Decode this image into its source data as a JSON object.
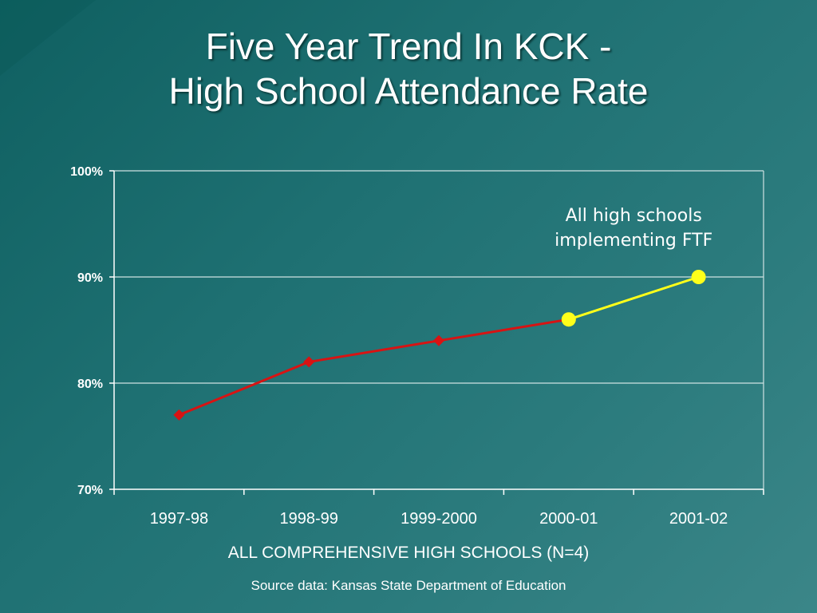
{
  "slide": {
    "title_line1": "Five Year Trend In KCK -",
    "title_line2": "High School Attendance Rate",
    "xaxis_title": "ALL COMPREHENSIVE HIGH SCHOOLS (N=4)",
    "source": "Source data: Kansas State Department of Education"
  },
  "chart_data": {
    "type": "line",
    "categories": [
      "1997-98",
      "1998-99",
      "1999-2000",
      "2000-01",
      "2001-02"
    ],
    "values": [
      77,
      82,
      84,
      86,
      90
    ],
    "ylim": [
      70,
      100
    ],
    "yticks": [
      70,
      80,
      90,
      100
    ],
    "ytick_labels": [
      "70%",
      "80%",
      "90%",
      "100%"
    ],
    "grid": true,
    "segments": [
      {
        "from": 0,
        "to": 3,
        "color": "#d81313",
        "marker": "diamond"
      },
      {
        "from": 3,
        "to": 4,
        "color": "#ffff1a",
        "marker": "circle"
      }
    ],
    "annotation": {
      "line1": "All high schools",
      "line2": "implementing FTF"
    },
    "colors": {
      "axis": "#ffffff",
      "grid": "#cfe2e2",
      "text": "#ffffff"
    }
  }
}
